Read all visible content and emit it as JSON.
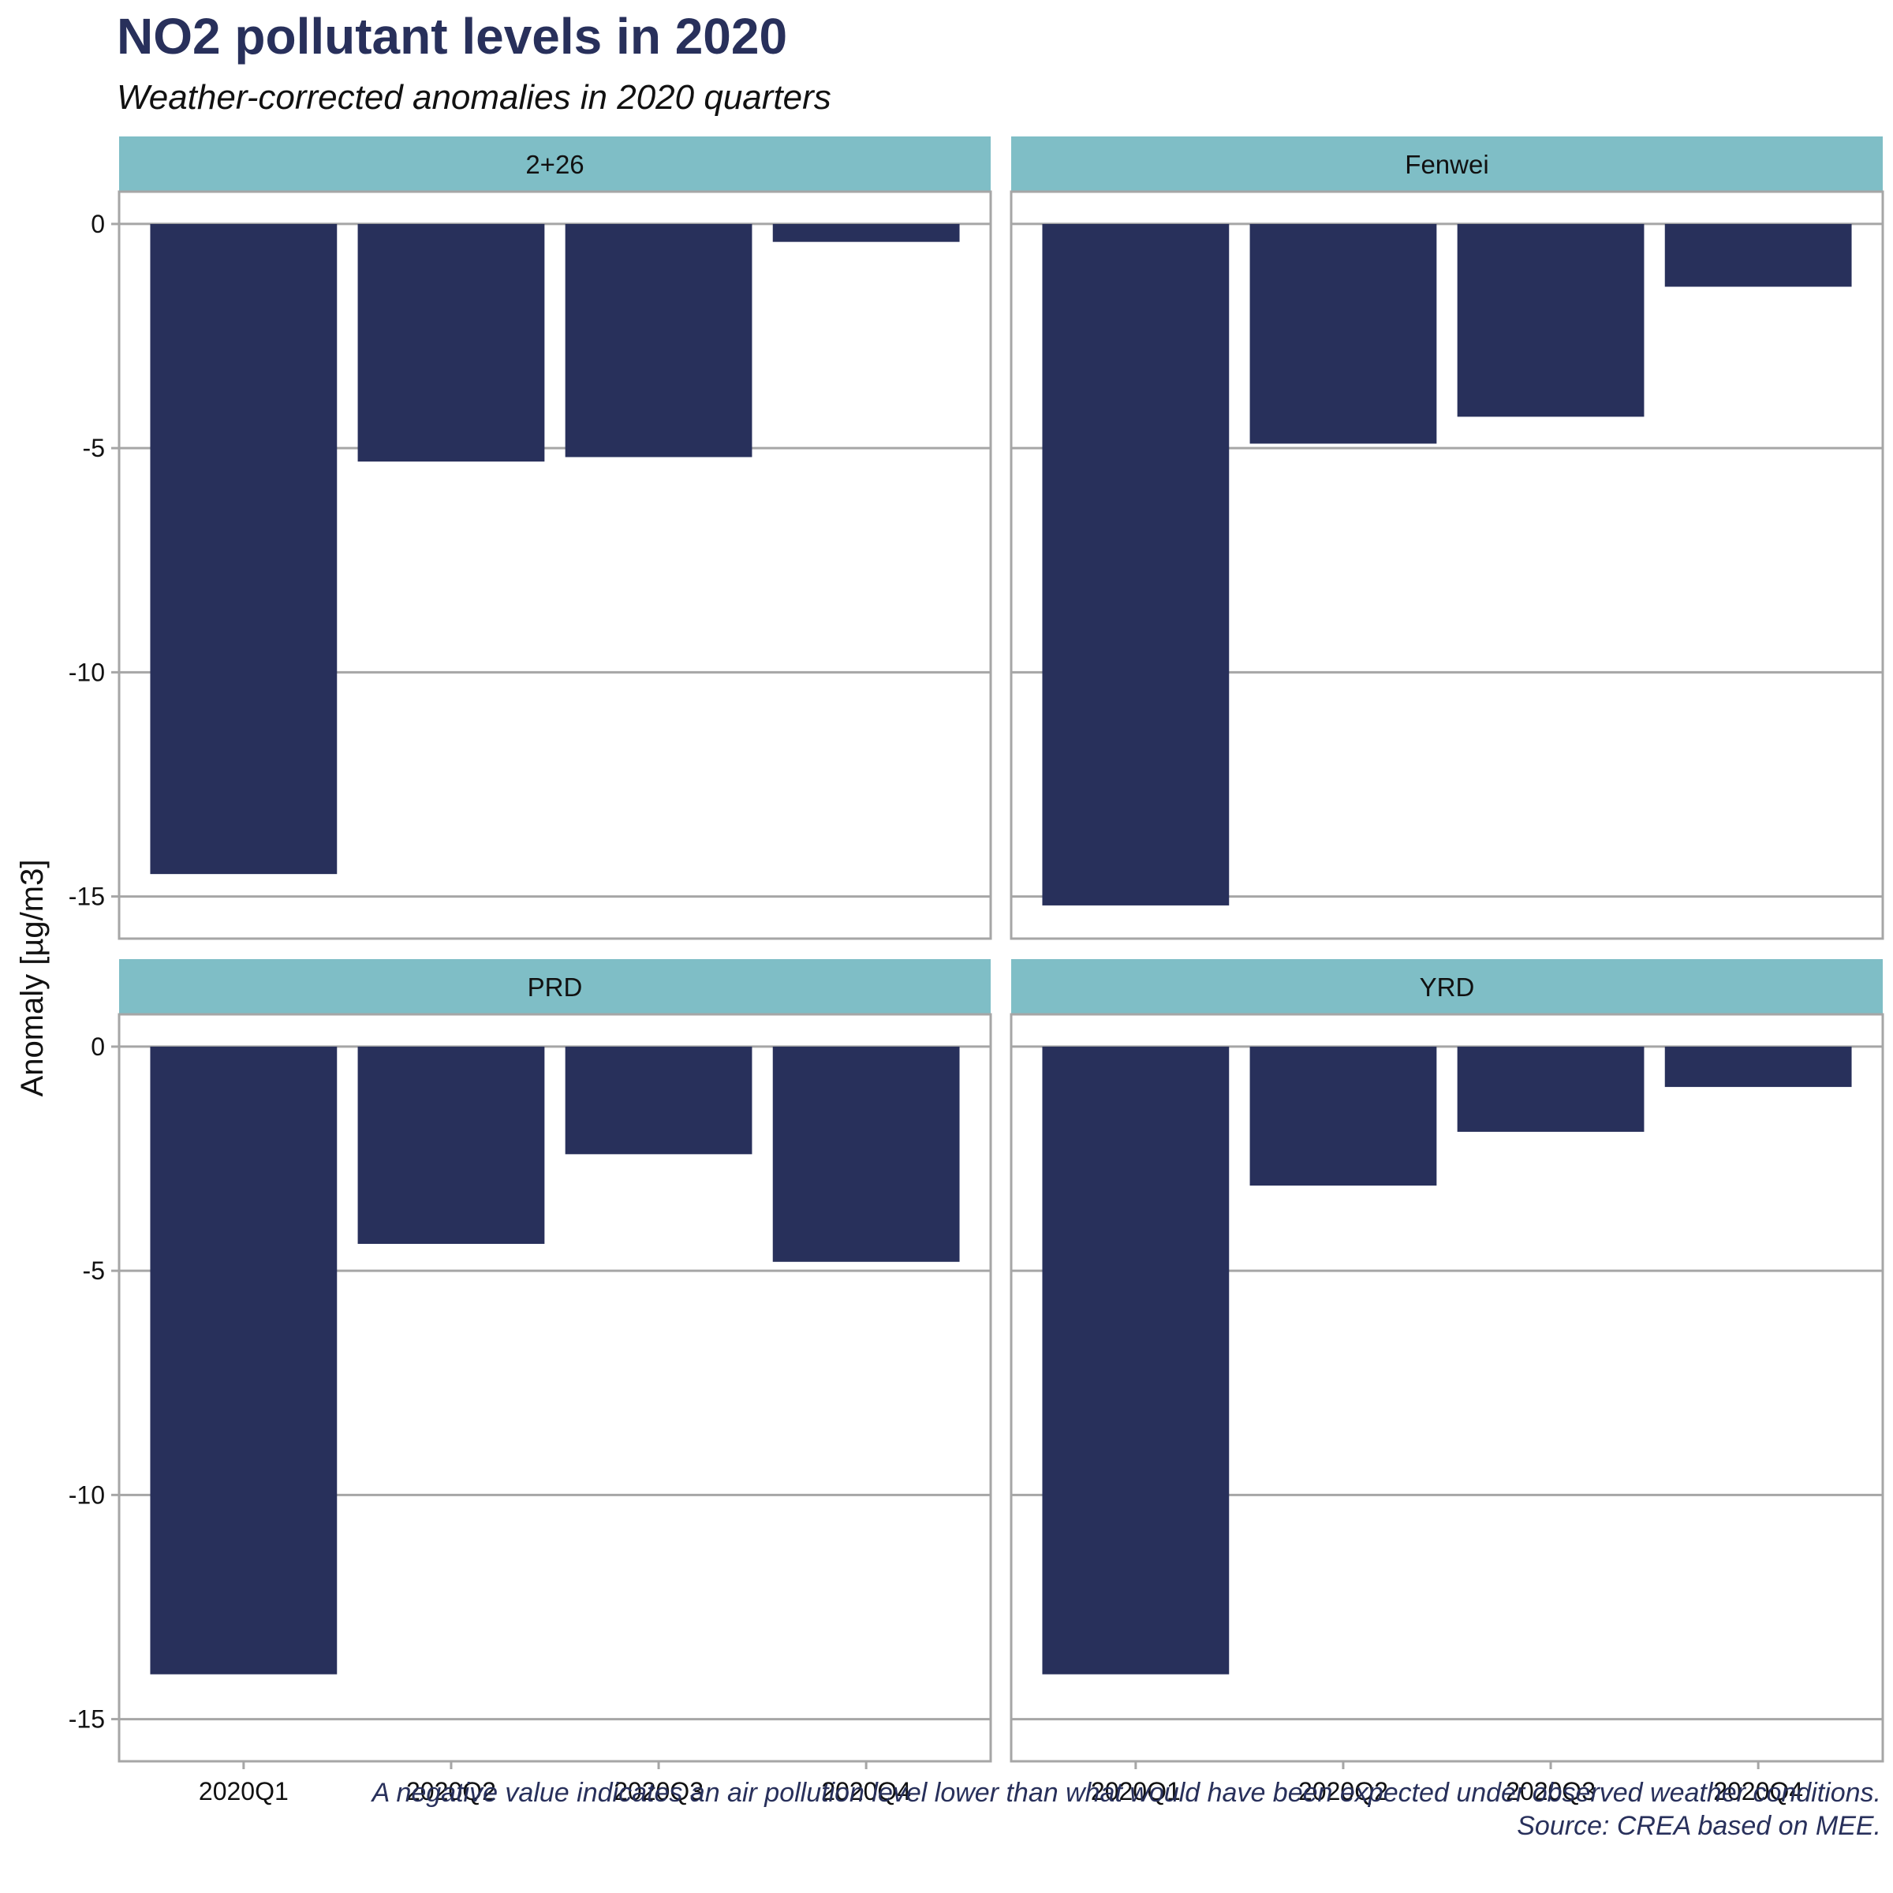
{
  "title": "NO2 pollutant levels in 2020",
  "subtitle": "Weather-corrected anomalies in 2020 quarters",
  "caption_lines": [
    "A negative value indicates an air pollution level lower than what would have been expected under observed weather conditions.",
    "Source: CREA based on MEE."
  ],
  "colors": {
    "bar": "#28305b",
    "title": "#28305b",
    "strip": "#7fbec6",
    "grid": "#a6a6a6",
    "panel_border": "#a6a6a6"
  },
  "chart_data": {
    "type": "bar",
    "facet": "region",
    "ylabel": "Anomaly [µg/m3]",
    "xlabel": "",
    "ylim": [
      -15.94,
      0.72
    ],
    "yticks": [
      0,
      -5,
      -10,
      -15
    ],
    "ytick_labels": [
      "0",
      "-5",
      "-10",
      "-15"
    ],
    "grid": "horizontal",
    "categories": [
      "2020Q1",
      "2020Q2",
      "2020Q3",
      "2020Q4"
    ],
    "panels": [
      {
        "name": "2+26",
        "values": [
          -14.5,
          -5.3,
          -5.2,
          -0.4
        ]
      },
      {
        "name": "Fenwei",
        "values": [
          -15.2,
          -4.9,
          -4.3,
          -1.4
        ]
      },
      {
        "name": "PRD",
        "values": [
          -14.0,
          -4.4,
          -2.4,
          -4.8
        ]
      },
      {
        "name": "YRD",
        "values": [
          -14.0,
          -3.1,
          -1.9,
          -0.9
        ]
      }
    ]
  }
}
